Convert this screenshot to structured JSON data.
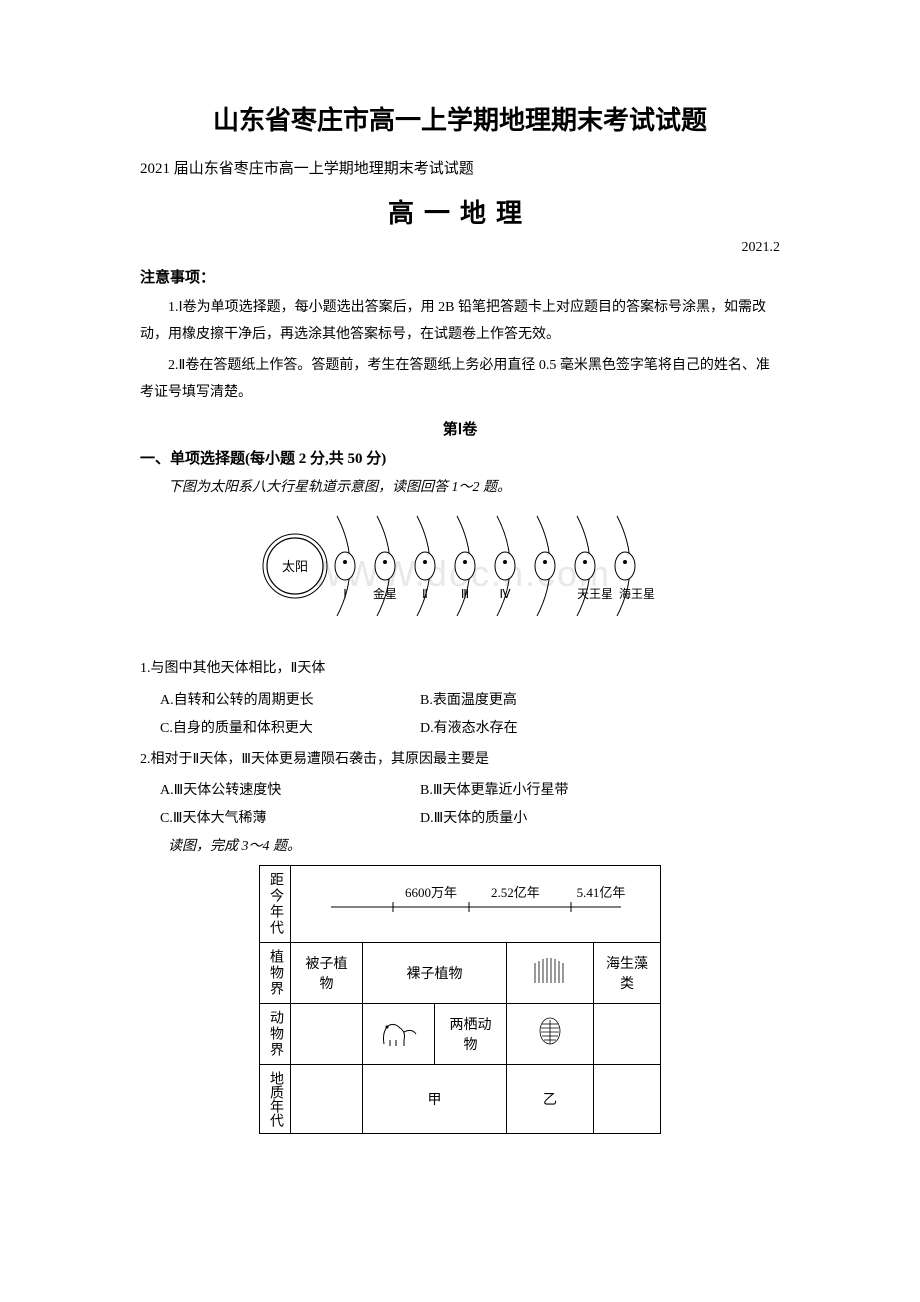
{
  "main_title": "山东省枣庄市高一上学期地理期末考试试题",
  "subtitle_line": "2021 届山东省枣庄市高一上学期地理期末考试试题",
  "subject_heading": "高一地理",
  "date_text": "2021.2",
  "notice": {
    "label": "注意事项：",
    "item1": "1.Ⅰ卷为单项选择题，每小题选出答案后，用 2B 铅笔把答题卡上对应题目的答案标号涂黑，如需改动，用橡皮擦干净后，再选涂其他答案标号，在试题卷上作答无效。",
    "item2": "2.Ⅱ卷在答题纸上作答。答题前，考生在答题纸上务必用直径 0.5 毫米黑色签字笔将自己的姓名、准考证号填写清楚。"
  },
  "section1_heading": "第Ⅰ卷",
  "mcq_label": "一、单项选择题(每小题 2 分,共 50 分)",
  "intro1": "下图为太阳系八大行星轨道示意图，读图回答 1～2 题。",
  "watermark": "WWW.doc.n.com",
  "solar_system": {
    "sun": "太阳",
    "labels": [
      "Ⅰ",
      "金星",
      "Ⅱ",
      "Ⅲ",
      "Ⅳ",
      "天王星",
      "海王星"
    ],
    "planet_count": 8,
    "sun_radius": 28,
    "planet_rx": 10,
    "planet_ry": 14,
    "stroke": "#000000",
    "fill": "#ffffff"
  },
  "q1": {
    "text": "1.与图中其他天体相比，Ⅱ天体",
    "A": "A.自转和公转的周期更长",
    "B": "B.表面温度更高",
    "C": "C.自身的质量和体积更大",
    "D": "D.有液态水存在"
  },
  "q2": {
    "text": "2.相对于Ⅱ天体，Ⅲ天体更易遭陨石袭击，其原因最主要是",
    "A": "A.Ⅲ天体公转速度快",
    "B": "B.Ⅲ天体更靠近小行星带",
    "C": "C.Ⅲ天体大气稀薄",
    "D": "D.Ⅲ天体的质量小"
  },
  "intro2": "读图，完成 3～4 题。",
  "geo_table": {
    "header_row_label": "距今年代",
    "header_times": [
      "6600万年",
      "2.52亿年",
      "5.41亿年"
    ],
    "row1_label": "植物界",
    "row1_cells": [
      "被子植物",
      "裸子植物",
      "",
      "海生藻类"
    ],
    "row2_label": "动物界",
    "row2_cells": [
      "",
      "",
      "两栖动物",
      "",
      ""
    ],
    "row3_label": "地质年代",
    "row3_cells": [
      "",
      "甲",
      "",
      "乙",
      ""
    ],
    "border_color": "#000000",
    "fontsize": 14
  }
}
